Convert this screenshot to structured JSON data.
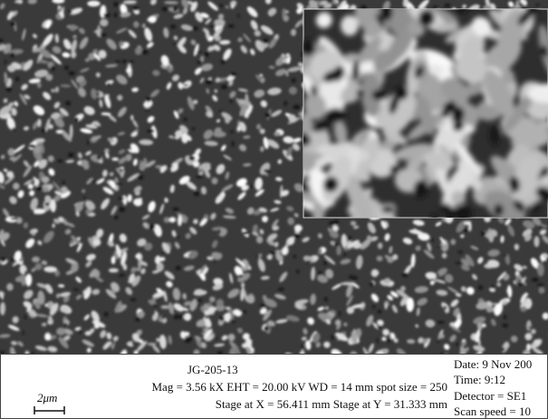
{
  "sample_id": "JG-205-13",
  "parameters_line": "Mag = 3.56 kX EHT = 20.00 kV WD = 14 mm spot size = 250",
  "stage_line": "Stage at X = 56.411 mm Stage at Y = 31.333 mm",
  "date": "Date: 9 Nov 200",
  "time": "Time: 9:12",
  "detector": "Detector = SE1",
  "scan_speed": "Scan speed = 10",
  "scale_bar_label": "2μm"
}
